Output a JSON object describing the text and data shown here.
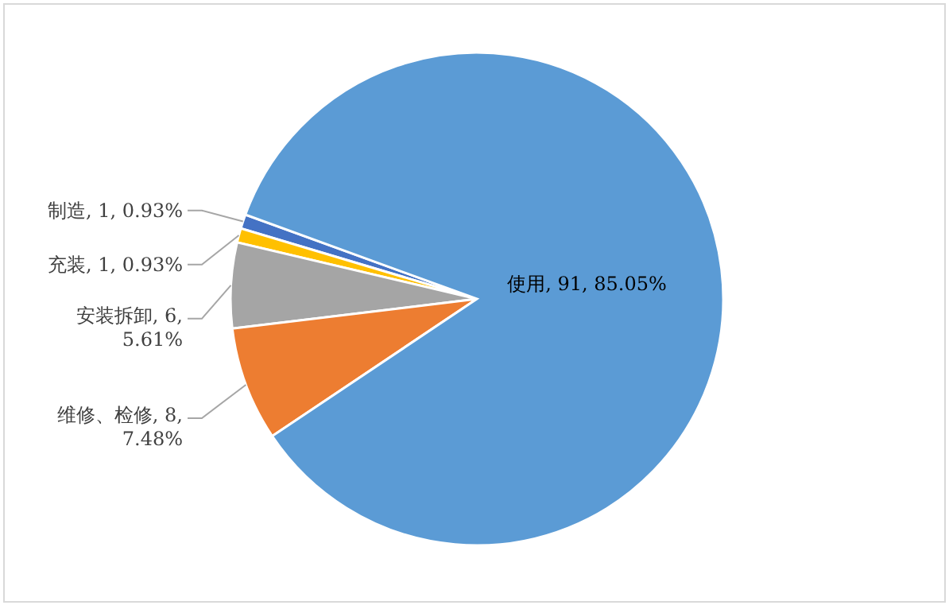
{
  "chart_data": {
    "type": "pie",
    "categories": [
      "制造",
      "充装",
      "安装拆卸",
      "维修、检修",
      "使用"
    ],
    "values": [
      1,
      1,
      6,
      8,
      91
    ],
    "value_labels": [
      "1, 0.93%",
      "1, 0.93%",
      "6, 5.61%",
      "8, 7.48%",
      "91, 85.05%"
    ],
    "colors": [
      "#4472c4",
      "#ffc000",
      "#a5a5a5",
      "#ed7d31",
      "#5b9bd5"
    ]
  }
}
